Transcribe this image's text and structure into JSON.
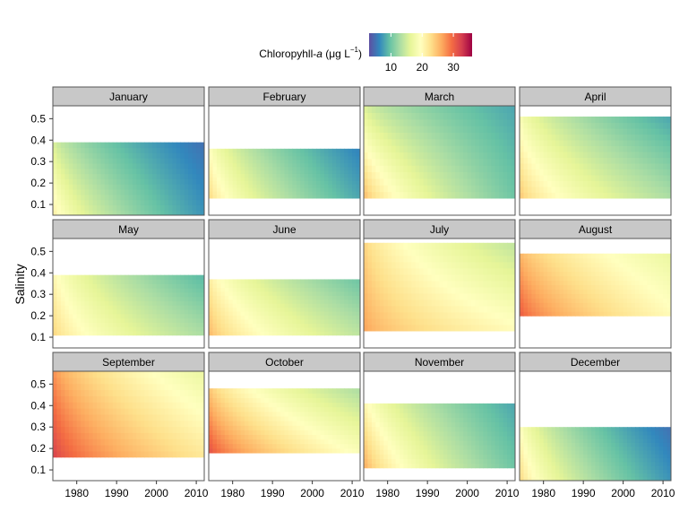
{
  "chart_data": {
    "type": "heatmap",
    "title": "",
    "xlabel": "",
    "ylabel": "Salinity",
    "xlim": [
      1974,
      2012
    ],
    "ylim": [
      0.05,
      0.56
    ],
    "x_ticks": [
      1980,
      1990,
      2000,
      2010
    ],
    "x_tick_labels": [
      "1980",
      "1990",
      "2000",
      "2010"
    ],
    "y_ticks": [
      0.1,
      0.2,
      0.3,
      0.4,
      0.5
    ],
    "y_tick_labels": [
      "0.1",
      "0.2",
      "0.3",
      "0.4",
      "0.5"
    ],
    "grid": false,
    "legend": {
      "title_prefix": "Chloropyhll-",
      "title_italic": "a",
      "title_unit": " (μg L",
      "title_sup": "−1",
      "title_close": ")",
      "placement": "top",
      "range": [
        3,
        36
      ],
      "ticks": [
        10,
        20,
        30
      ],
      "tick_labels": [
        "10",
        "20",
        "30"
      ],
      "palette": [
        "#5E4FA2",
        "#3288BD",
        "#66C2A5",
        "#ABDDA4",
        "#E6F598",
        "#FFFFBF",
        "#FEE08B",
        "#FDAE61",
        "#F46D43",
        "#D53E4F",
        "#9E0142"
      ]
    },
    "panels": [
      {
        "month": "January",
        "year_range": [
          1974,
          2012
        ],
        "salinity_range": [
          0.05,
          0.39
        ],
        "chl_start": [
          22,
          16
        ],
        "chl_end": [
          7,
          5
        ]
      },
      {
        "month": "February",
        "year_range": [
          1974,
          2012
        ],
        "salinity_range": [
          0.13,
          0.36
        ],
        "chl_start": [
          24,
          20
        ],
        "chl_end": [
          8,
          6
        ]
      },
      {
        "month": "March",
        "year_range": [
          1974,
          2012
        ],
        "salinity_range": [
          0.13,
          0.56
        ],
        "chl_start": [
          26,
          16
        ],
        "chl_end": [
          10,
          8
        ]
      },
      {
        "month": "April",
        "year_range": [
          1974,
          2012
        ],
        "salinity_range": [
          0.13,
          0.51
        ],
        "chl_start": [
          25,
          19
        ],
        "chl_end": [
          13,
          8
        ]
      },
      {
        "month": "May",
        "year_range": [
          1974,
          2012
        ],
        "salinity_range": [
          0.11,
          0.39
        ],
        "chl_start": [
          24,
          21
        ],
        "chl_end": [
          13,
          9
        ]
      },
      {
        "month": "June",
        "year_range": [
          1974,
          2012
        ],
        "salinity_range": [
          0.11,
          0.37
        ],
        "chl_start": [
          26,
          22
        ],
        "chl_end": [
          14,
          10
        ]
      },
      {
        "month": "July",
        "year_range": [
          1974,
          2012
        ],
        "salinity_range": [
          0.13,
          0.54
        ],
        "chl_start": [
          27,
          24
        ],
        "chl_end": [
          20,
          14
        ]
      },
      {
        "month": "August",
        "year_range": [
          1974,
          2012
        ],
        "salinity_range": [
          0.2,
          0.49
        ],
        "chl_start": [
          31,
          26
        ],
        "chl_end": [
          20,
          17
        ]
      },
      {
        "month": "September",
        "year_range": [
          1974,
          2012
        ],
        "salinity_range": [
          0.16,
          0.56
        ],
        "chl_start": [
          33,
          28
        ],
        "chl_end": [
          22,
          17
        ]
      },
      {
        "month": "October",
        "year_range": [
          1974,
          2012
        ],
        "salinity_range": [
          0.18,
          0.48
        ],
        "chl_start": [
          32,
          25
        ],
        "chl_end": [
          19,
          13
        ]
      },
      {
        "month": "November",
        "year_range": [
          1974,
          2012
        ],
        "salinity_range": [
          0.11,
          0.41
        ],
        "chl_start": [
          27,
          21
        ],
        "chl_end": [
          10,
          8
        ]
      },
      {
        "month": "December",
        "year_range": [
          1974,
          2012
        ],
        "salinity_range": [
          0.05,
          0.3
        ],
        "chl_start": [
          24,
          20
        ],
        "chl_end": [
          7,
          5
        ]
      }
    ]
  }
}
